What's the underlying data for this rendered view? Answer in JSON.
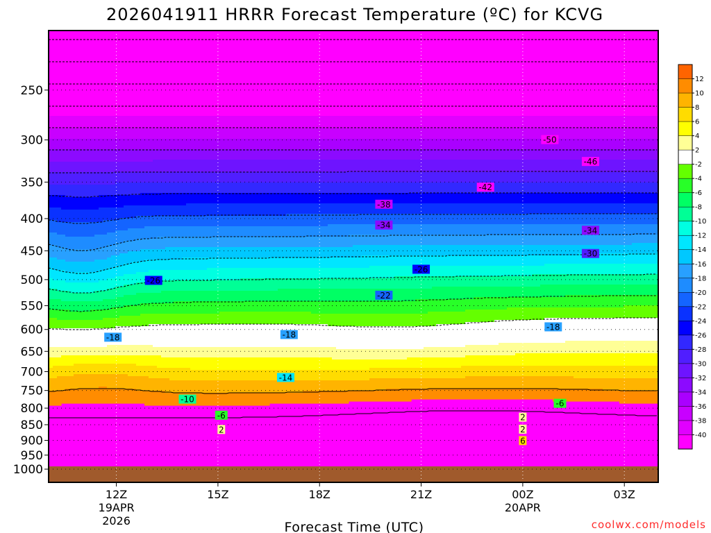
{
  "chart_data": {
    "type": "heatmap",
    "title": "2026041911 HRRR Forecast Temperature (ºC) for KCVG",
    "xlabel": "Forecast Time (UTC)",
    "ylabel": "",
    "credit": "coolwx.com/models",
    "y_axis": {
      "unit": "hPa",
      "scale": "log",
      "inverted": true,
      "ticks": [
        250,
        300,
        350,
        400,
        450,
        500,
        550,
        600,
        650,
        700,
        750,
        800,
        850,
        900,
        950,
        1000
      ],
      "tick_labels": [
        "250",
        "300",
        "350",
        "400",
        "450",
        "500",
        "550",
        "600",
        "650",
        "700",
        "750",
        "800",
        "850",
        "900",
        "950",
        "1000"
      ]
    },
    "x_axis": {
      "unit": "forecast hour",
      "range": [
        -1,
        17
      ],
      "ticks": [
        {
          "hour": 1,
          "label": "12Z",
          "sub1": "19APR",
          "sub2": "2026"
        },
        {
          "hour": 4,
          "label": "15Z",
          "sub1": "",
          "sub2": ""
        },
        {
          "hour": 7,
          "label": "18Z",
          "sub1": "",
          "sub2": ""
        },
        {
          "hour": 10,
          "label": "21Z",
          "sub1": "",
          "sub2": ""
        },
        {
          "hour": 13,
          "label": "00Z",
          "sub1": "20APR",
          "sub2": ""
        },
        {
          "hour": 16,
          "label": "03Z",
          "sub1": "",
          "sub2": ""
        }
      ]
    },
    "levels": [
      -40,
      -38,
      -36,
      -34,
      -32,
      -30,
      -28,
      -26,
      -24,
      -22,
      -20,
      -18,
      -16,
      -14,
      -12,
      -10,
      -8,
      -6,
      -4,
      -2,
      2,
      4,
      6,
      8,
      10,
      12
    ],
    "colors": [
      "#ff00ff",
      "#e100ff",
      "#c800ff",
      "#aa00ff",
      "#8c0aff",
      "#6e14ff",
      "#501eff",
      "#3228ff",
      "#0000ff",
      "#0a32ff",
      "#1464ff",
      "#1e8cff",
      "#28a0ff",
      "#00c8ff",
      "#00e6ff",
      "#00ffe1",
      "#00ff96",
      "#00ff64",
      "#28ff28",
      "#64ff00",
      "#ffffff",
      "#ffff96",
      "#ffff00",
      "#ffdc00",
      "#ffb400",
      "#ff8c00",
      "#ff6400"
    ],
    "ground_color": "#a05a2c",
    "contour_labels": [
      {
        "value": -50,
        "hour": 13.8,
        "p": 300
      },
      {
        "value": -46,
        "hour": 15.0,
        "p": 325
      },
      {
        "value": -42,
        "hour": 11.9,
        "p": 357
      },
      {
        "value": -38,
        "hour": 8.9,
        "p": 380
      },
      {
        "value": -34,
        "hour": 8.9,
        "p": 410
      },
      {
        "value": -34,
        "hour": 15.0,
        "p": 418
      },
      {
        "value": -30,
        "hour": 15.0,
        "p": 455
      },
      {
        "value": -26,
        "hour": 2.1,
        "p": 502
      },
      {
        "value": -26,
        "hour": 10.0,
        "p": 482
      },
      {
        "value": -22,
        "hour": 8.9,
        "p": 530
      },
      {
        "value": -18,
        "hour": 0.9,
        "p": 618
      },
      {
        "value": -18,
        "hour": 6.1,
        "p": 612
      },
      {
        "value": -18,
        "hour": 13.9,
        "p": 595
      },
      {
        "value": -14,
        "hour": 6.0,
        "p": 716
      },
      {
        "value": -10,
        "hour": 3.1,
        "p": 775
      },
      {
        "value": -6,
        "hour": 4.1,
        "p": 822
      },
      {
        "value": -6,
        "hour": 14.1,
        "p": 787
      },
      {
        "value": 2,
        "hour": 4.1,
        "p": 866
      },
      {
        "value": 2,
        "hour": 13.0,
        "p": 828
      },
      {
        "value": 2,
        "hour": 13.0,
        "p": 865
      },
      {
        "value": 6,
        "hour": 13.0,
        "p": 902
      }
    ],
    "colorbar_labels": [
      "12",
      "10",
      "8",
      "6",
      "4",
      "2",
      "-2",
      "-4",
      "-6",
      "-8",
      "-10",
      "-12",
      "-14",
      "-16",
      "-18",
      "-20",
      "-22",
      "-24",
      "-26",
      "-28",
      "-30",
      "-32",
      "-34",
      "-36",
      "-38",
      "-40"
    ]
  }
}
